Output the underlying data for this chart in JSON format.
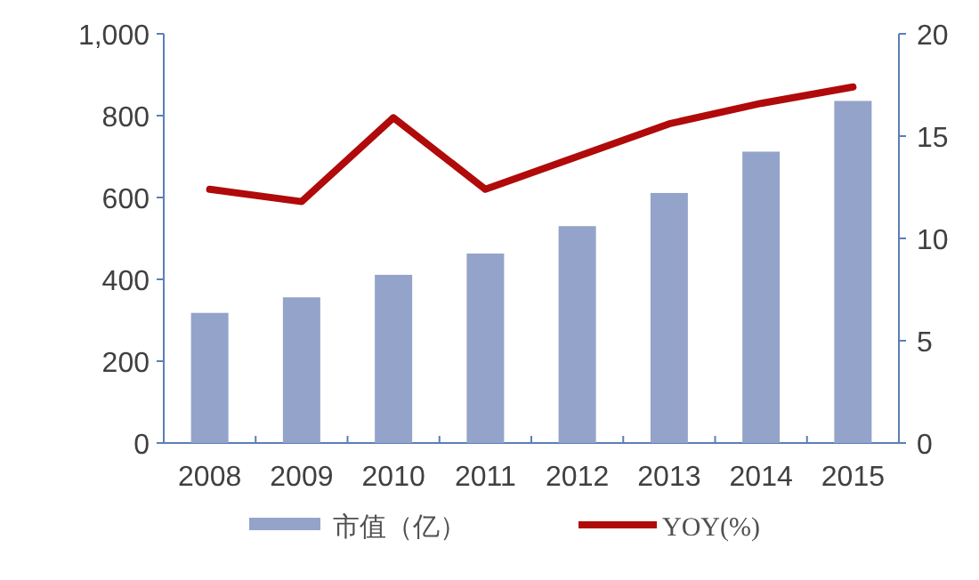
{
  "chart_data": {
    "type": "bar",
    "categories": [
      "2008",
      "2009",
      "2010",
      "2011",
      "2012",
      "2013",
      "2014",
      "2015"
    ],
    "series": [
      {
        "name": "市值（亿）",
        "color": "#94a3c9",
        "values": [
          318,
          356,
          411,
          463,
          530,
          611,
          712,
          836
        ]
      },
      {
        "name": "YOY(%)",
        "type": "line",
        "axis": "y2",
        "color": "#b00a0a",
        "values": [
          12.4,
          11.8,
          15.9,
          12.4,
          14.0,
          15.6,
          16.6,
          17.4
        ]
      }
    ],
    "ylim": [
      0,
      1000
    ],
    "yticks": [
      0,
      200,
      400,
      600,
      800,
      {
        "value": 1000,
        "label": "1,000"
      }
    ],
    "y2lim": [
      0,
      20
    ],
    "y2ticks": [
      0,
      5,
      10,
      15,
      20
    ],
    "legend": "bottom",
    "grid": false
  }
}
